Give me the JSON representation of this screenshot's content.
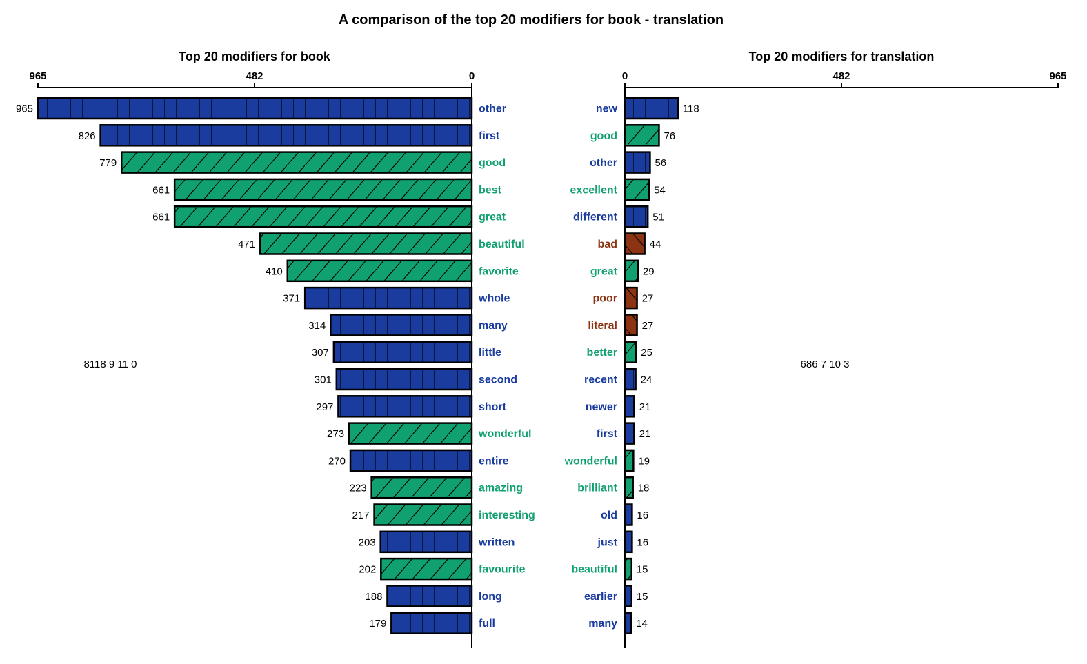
{
  "title": "A comparison of the top 20 modifiers for book - translation",
  "colors": {
    "neutral": "#1a3c9e",
    "positive": "#11a070",
    "negative": "#8b3312",
    "neutral_text": "#1a3c9e",
    "positive_text": "#11a070",
    "negative_text": "#8b3312"
  },
  "chart_data": [
    {
      "type": "bar",
      "orientation": "horizontal",
      "direction": "right-to-left",
      "title": "Top 20 modifiers for book",
      "xlim": [
        0,
        965
      ],
      "ticks": [
        "965",
        "482",
        "0"
      ],
      "summary": "8118 9 11 0",
      "categories": [
        "other",
        "first",
        "good",
        "best",
        "great",
        "beautiful",
        "favorite",
        "whole",
        "many",
        "little",
        "second",
        "short",
        "wonderful",
        "entire",
        "amazing",
        "interesting",
        "written",
        "favourite",
        "long",
        "full"
      ],
      "values": [
        965,
        826,
        779,
        661,
        661,
        471,
        410,
        371,
        314,
        307,
        301,
        297,
        273,
        270,
        223,
        217,
        203,
        202,
        188,
        179
      ],
      "sentiment": [
        "neutral",
        "neutral",
        "positive",
        "positive",
        "positive",
        "positive",
        "positive",
        "neutral",
        "neutral",
        "neutral",
        "neutral",
        "neutral",
        "positive",
        "neutral",
        "positive",
        "positive",
        "neutral",
        "positive",
        "neutral",
        "neutral"
      ]
    },
    {
      "type": "bar",
      "orientation": "horizontal",
      "direction": "left-to-right",
      "title": "Top 20 modifiers for translation",
      "xlim": [
        0,
        965
      ],
      "ticks": [
        "0",
        "482",
        "965"
      ],
      "summary": "686 7 10 3",
      "categories": [
        "new",
        "good",
        "other",
        "excellent",
        "different",
        "bad",
        "great",
        "poor",
        "literal",
        "better",
        "recent",
        "newer",
        "first",
        "wonderful",
        "brilliant",
        "old",
        "just",
        "beautiful",
        "earlier",
        "many"
      ],
      "values": [
        118,
        76,
        56,
        54,
        51,
        44,
        29,
        27,
        27,
        25,
        24,
        21,
        21,
        19,
        18,
        16,
        16,
        15,
        15,
        14
      ],
      "sentiment": [
        "neutral",
        "positive",
        "neutral",
        "positive",
        "neutral",
        "negative",
        "positive",
        "negative",
        "negative",
        "positive",
        "neutral",
        "neutral",
        "neutral",
        "positive",
        "positive",
        "neutral",
        "neutral",
        "positive",
        "neutral",
        "neutral"
      ]
    }
  ]
}
